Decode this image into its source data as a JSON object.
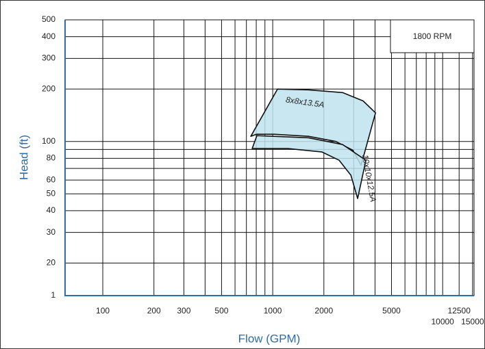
{
  "chart_data": {
    "type": "area",
    "x_label": "Flow (GPM)",
    "y_label": "Head (ft)",
    "annotation": "1800 RPM",
    "log_x": true,
    "log_y": true,
    "grid": true,
    "xlim": [
      60,
      15300
    ],
    "ylim": [
      13,
      500
    ],
    "xticks": [
      100,
      200,
      300,
      500,
      1000,
      2000,
      5000,
      10000,
      12500,
      15000
    ],
    "x_minor_grid": [
      400,
      600,
      700,
      800,
      900,
      3000,
      4000,
      6000,
      7000,
      8000,
      9000
    ],
    "yticks": [
      20,
      30,
      40,
      50,
      60,
      80,
      100,
      200,
      300,
      400,
      500
    ],
    "y_minor_grid": [
      70,
      90
    ],
    "y_axis_bottom_label": "1",
    "series": [
      {
        "name": "8x8x13.5A",
        "color": "#bfe3ee",
        "x": [
          743,
          1067,
          1622,
          2576,
          3404,
          4027,
          3311,
          2965,
          2350,
          1622,
          1019,
          800
        ],
        "values": [
          107,
          200,
          198,
          191,
          171,
          146,
          73,
          89,
          100,
          107,
          110,
          110
        ]
      },
      {
        "name": "10x10x12.5A",
        "color": "#bfe3ee",
        "x": [
          757,
          807,
          1622,
          2576,
          3532,
          3162,
          2884,
          2460,
          1950,
          1227
        ],
        "values": [
          91,
          108,
          105,
          96,
          78,
          47,
          64,
          78,
          87,
          91
        ]
      }
    ]
  }
}
